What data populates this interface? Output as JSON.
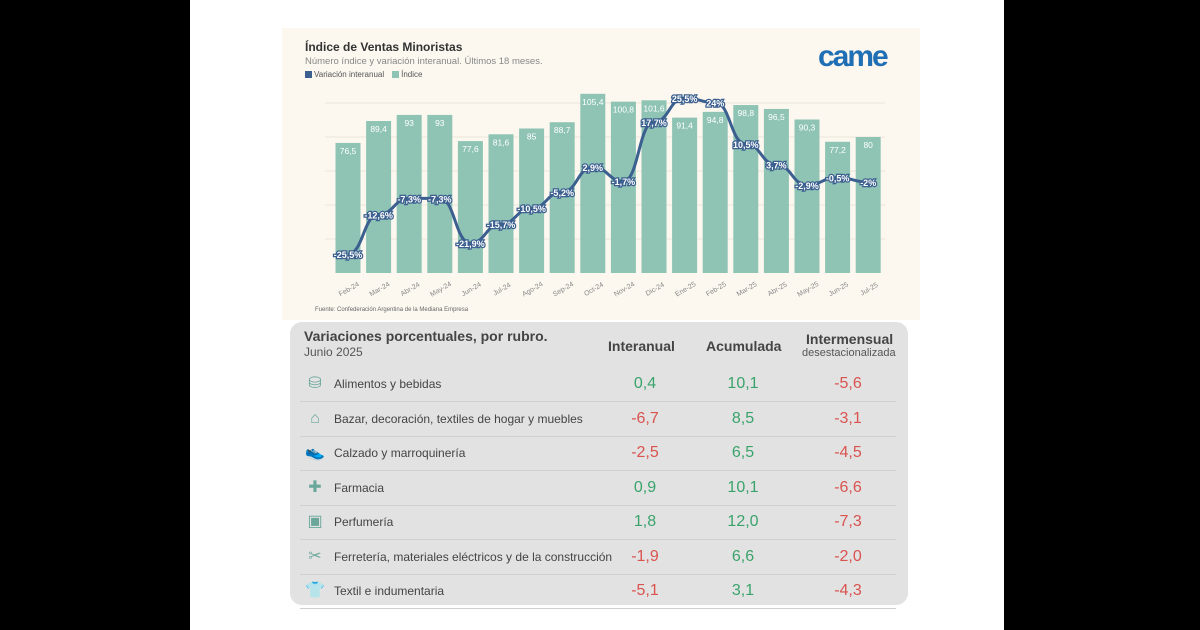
{
  "chart_data": {
    "type": "bar+line",
    "title": "Índice de Ventas Minoristas",
    "subtitle": "Número índice y variación interanual. Últimos 18 meses.",
    "legend": [
      "Variación interanual",
      "Índice"
    ],
    "categories": [
      "Feb-24",
      "Mar-24",
      "Abr-24",
      "May-24",
      "Jun-24",
      "Jul-24",
      "Ago-24",
      "Sep-24",
      "Oct-24",
      "Nov-24",
      "Dic-24",
      "Ene-25",
      "Feb-25",
      "Mar-25",
      "Abr-25",
      "May-25",
      "Jun-25",
      "Jul-25"
    ],
    "series": [
      {
        "name": "Índice",
        "type": "bar",
        "color": "#8fc4b5",
        "values": [
          76.5,
          89.4,
          93,
          93,
          77.6,
          81.6,
          85,
          88.7,
          105.4,
          100.8,
          101.6,
          91.4,
          94.8,
          98.8,
          96.5,
          90.3,
          77.2,
          80
        ],
        "labels": [
          "76,5",
          "89,4",
          "93",
          "93",
          "77,6",
          "81,6",
          "85",
          "88,7",
          "105,4",
          "100,8",
          "101,6",
          "91,4",
          "94,8",
          "98,8",
          "96,5",
          "90,3",
          "77,2",
          "80"
        ]
      },
      {
        "name": "Variación interanual",
        "type": "line",
        "color": "#3b5f8f",
        "values": [
          -25.5,
          -12.6,
          -7.3,
          -7.3,
          -21.9,
          -15.7,
          -10.5,
          -5.2,
          2.9,
          -1.7,
          17.7,
          25.5,
          24,
          10.5,
          3.7,
          -2.9,
          -0.5,
          -2
        ],
        "labels": [
          "-25,5%",
          "-12,6%",
          "-7,3%",
          "-7,3%",
          "-21,9%",
          "-15,7%",
          "-10,5%",
          "-5,2%",
          "2,9%",
          "-1,7%",
          "17,7%",
          "25,5%",
          "24%",
          "10,5%",
          "3,7%",
          "-2,9%",
          "-0,5%",
          "-2%"
        ]
      }
    ],
    "source": "Fuente: Confederación Argentina de la Mediana Empresa",
    "grid": true
  },
  "logo": "came",
  "table": {
    "title": "Variaciones porcentuales, por rubro.",
    "subtitle": "Junio 2025",
    "headers": [
      "Interanual",
      "Acumulada",
      "Intermensual"
    ],
    "header_sub": "desestacionalizada",
    "rows": [
      {
        "label": "Alimentos y bebidas",
        "icon": "⛁",
        "values": [
          "0,4",
          "10,1",
          "-5,6"
        ]
      },
      {
        "label": "Bazar, decoración, textiles de hogar y muebles",
        "icon": "⌂",
        "values": [
          "-6,7",
          "8,5",
          "-3,1"
        ]
      },
      {
        "label": "Calzado y marroquinería",
        "icon": "👟",
        "values": [
          "-2,5",
          "6,5",
          "-4,5"
        ]
      },
      {
        "label": "Farmacia",
        "icon": "✚",
        "values": [
          "0,9",
          "10,1",
          "-6,6"
        ]
      },
      {
        "label": "Perfumería",
        "icon": "▣",
        "values": [
          "1,8",
          "12,0",
          "-7,3"
        ]
      },
      {
        "label": "Ferretería, materiales eléctricos y de la construcción",
        "icon": "✂",
        "values": [
          "-1,9",
          "6,6",
          "-2,0"
        ]
      },
      {
        "label": "Textil e indumentaria",
        "icon": "👕",
        "values": [
          "-5,1",
          "3,1",
          "-4,3"
        ]
      }
    ],
    "colors": {
      "positive": "#3aa36b",
      "negative": "#d9534f"
    }
  }
}
